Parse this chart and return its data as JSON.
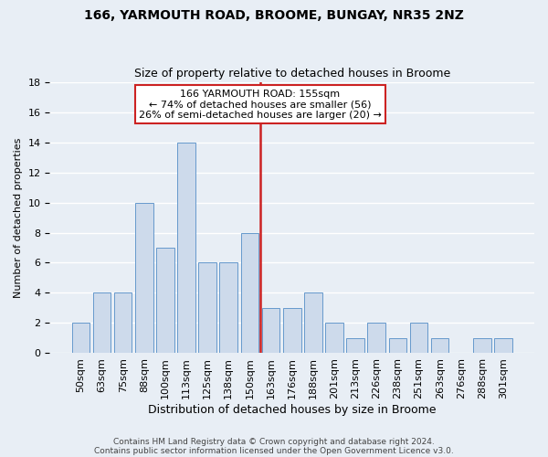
{
  "title1": "166, YARMOUTH ROAD, BROOME, BUNGAY, NR35 2NZ",
  "title2": "Size of property relative to detached houses in Broome",
  "xlabel": "Distribution of detached houses by size in Broome",
  "ylabel": "Number of detached properties",
  "categories": [
    "50sqm",
    "63sqm",
    "75sqm",
    "88sqm",
    "100sqm",
    "113sqm",
    "125sqm",
    "138sqm",
    "150sqm",
    "163sqm",
    "176sqm",
    "188sqm",
    "201sqm",
    "213sqm",
    "226sqm",
    "238sqm",
    "251sqm",
    "263sqm",
    "276sqm",
    "288sqm",
    "301sqm"
  ],
  "values": [
    2,
    4,
    4,
    10,
    7,
    14,
    6,
    6,
    8,
    3,
    3,
    4,
    2,
    1,
    2,
    1,
    2,
    1,
    0,
    1,
    1
  ],
  "bar_color": "#cddaeb",
  "bar_edge_color": "#6699cc",
  "highlight_index": 8,
  "annotation_line1": "166 YARMOUTH ROAD: 155sqm",
  "annotation_line2": "← 74% of detached houses are smaller (56)",
  "annotation_line3": "26% of semi-detached houses are larger (20) →",
  "vline_color": "#cc2222",
  "annotation_box_edge_color": "#cc2222",
  "footnote1": "Contains HM Land Registry data © Crown copyright and database right 2024.",
  "footnote2": "Contains public sector information licensed under the Open Government Licence v3.0.",
  "ylim": [
    0,
    18
  ],
  "yticks": [
    0,
    2,
    4,
    6,
    8,
    10,
    12,
    14,
    16,
    18
  ],
  "background_color": "#e8eef5",
  "grid_color": "#ffffff",
  "bar_width": 0.85,
  "title1_fontsize": 10,
  "title2_fontsize": 9,
  "xlabel_fontsize": 9,
  "ylabel_fontsize": 8,
  "tick_fontsize": 8,
  "annotation_fontsize": 8
}
